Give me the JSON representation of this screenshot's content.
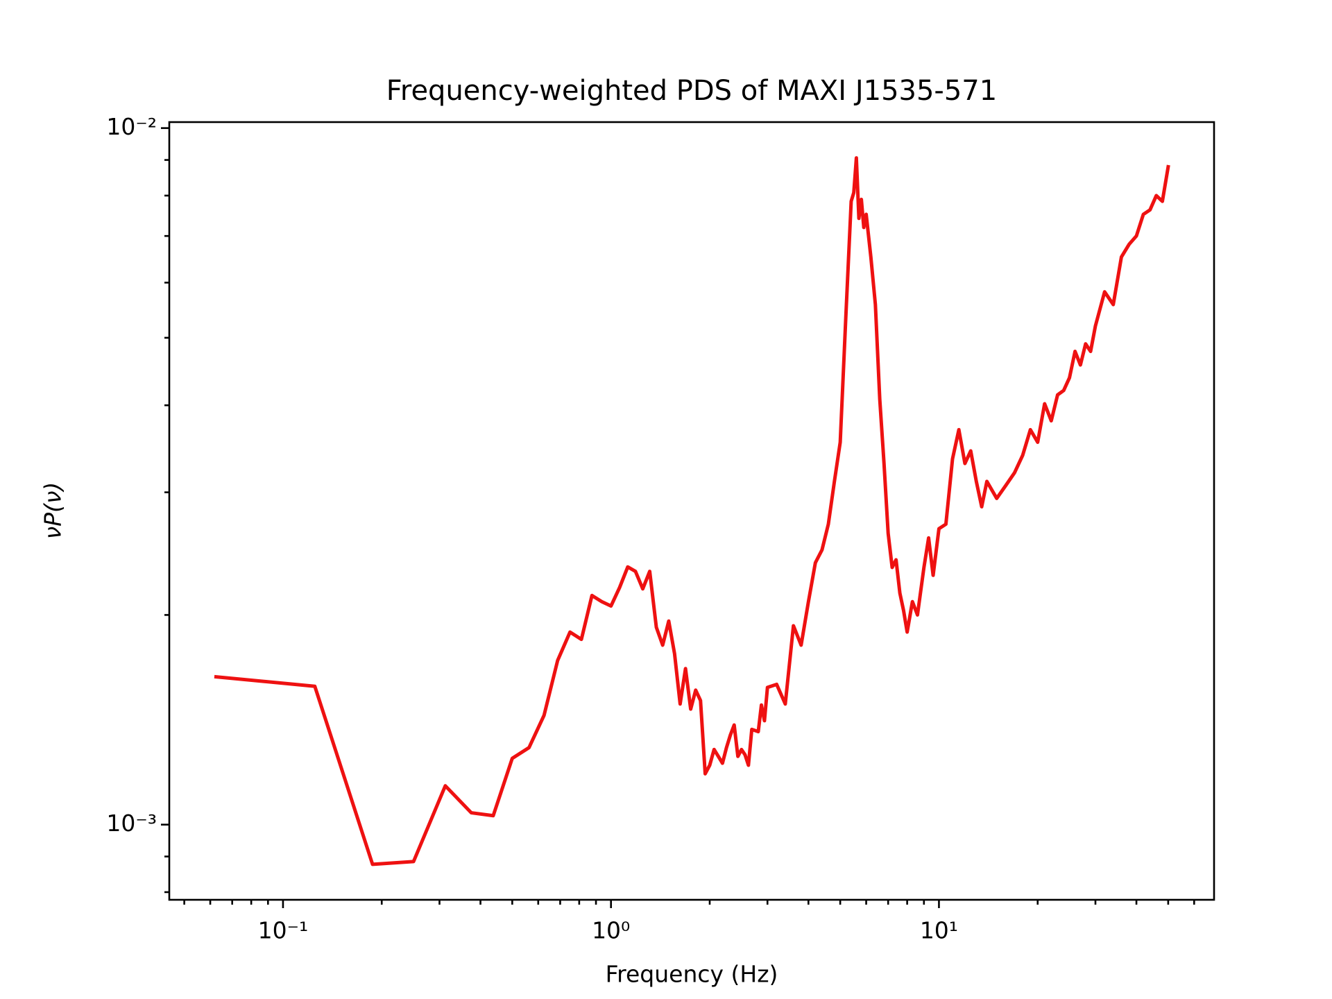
{
  "chart_data": {
    "type": "line",
    "title": "Frequency-weighted PDS of MAXI J1535-571",
    "xlabel": "Frequency (Hz)",
    "ylabel": "νP(ν)",
    "xscale": "log",
    "yscale": "log",
    "xlim": [
      0.045,
      69
    ],
    "ylim": [
      0.00078,
      0.0102
    ],
    "xticks": [
      {
        "value": 0.1,
        "label": "10⁻¹"
      },
      {
        "value": 1,
        "label": "10⁰"
      },
      {
        "value": 10,
        "label": "10¹"
      }
    ],
    "yticks": [
      {
        "value": 0.001,
        "label": "10⁻³"
      },
      {
        "value": 0.01,
        "label": "10⁻²"
      }
    ],
    "xminor": [
      0.05,
      0.06,
      0.07,
      0.08,
      0.09,
      0.2,
      0.3,
      0.4,
      0.5,
      0.6,
      0.7,
      0.8,
      0.9,
      2,
      3,
      4,
      5,
      6,
      7,
      8,
      9,
      20,
      30,
      40,
      50,
      60
    ],
    "yminor": [
      0.0008,
      0.0009,
      0.002,
      0.003,
      0.004,
      0.005,
      0.006,
      0.007,
      0.008,
      0.009
    ],
    "x": [
      0.0625,
      0.125,
      0.1875,
      0.25,
      0.3125,
      0.375,
      0.4375,
      0.5,
      0.5625,
      0.625,
      0.6875,
      0.75,
      0.8125,
      0.875,
      0.9375,
      1.0,
      1.0625,
      1.125,
      1.1875,
      1.25,
      1.3125,
      1.375,
      1.4375,
      1.5,
      1.5625,
      1.625,
      1.6875,
      1.75,
      1.8125,
      1.875,
      1.9375,
      2.0,
      2.0625,
      2.125,
      2.1875,
      2.25,
      2.3125,
      2.375,
      2.4375,
      2.5,
      2.5625,
      2.625,
      2.6875,
      2.75,
      2.8125,
      2.875,
      2.9375,
      3.0,
      3.2,
      3.4,
      3.6,
      3.8,
      4.0,
      4.2,
      4.4,
      4.6,
      4.8,
      5.0,
      5.2,
      5.4,
      5.5,
      5.6,
      5.7,
      5.8,
      5.9,
      6.0,
      6.2,
      6.4,
      6.6,
      6.8,
      7.0,
      7.2,
      7.4,
      7.6,
      7.8,
      8.0,
      8.3,
      8.6,
      9.0,
      9.3,
      9.6,
      10,
      10.5,
      11,
      11.5,
      12,
      12.5,
      13,
      13.5,
      14,
      15,
      16,
      17,
      18,
      19,
      20,
      21,
      22,
      23,
      24,
      25,
      26,
      27,
      28,
      29,
      30,
      32,
      34,
      36,
      38,
      40,
      42,
      44,
      46,
      48,
      50
    ],
    "series": [
      {
        "color": "#ee1111",
        "values": [
          0.00163,
          0.00158,
          0.000877,
          0.000885,
          0.001137,
          0.00104,
          0.00103,
          0.001245,
          0.00129,
          0.001435,
          0.00172,
          0.00189,
          0.001845,
          0.002133,
          0.00209,
          0.00206,
          0.00219,
          0.002344,
          0.00231,
          0.00218,
          0.00231,
          0.00192,
          0.00181,
          0.00196,
          0.00176,
          0.00149,
          0.001675,
          0.001465,
          0.00156,
          0.001507,
          0.001183,
          0.001217,
          0.001282,
          0.001253,
          0.001225,
          0.00129,
          0.001345,
          0.00139,
          0.001253,
          0.001282,
          0.00126,
          0.001217,
          0.00137,
          0.001365,
          0.00136,
          0.001485,
          0.00141,
          0.001574,
          0.00159,
          0.00149,
          0.00193,
          0.00181,
          0.00209,
          0.002377,
          0.00248,
          0.0027,
          0.00311,
          0.00354,
          0.00535,
          0.00785,
          0.00808,
          0.00906,
          0.00742,
          0.0079,
          0.0072,
          0.00752,
          0.00653,
          0.00558,
          0.00408,
          0.0033,
          0.00262,
          0.00234,
          0.0024,
          0.00215,
          0.00203,
          0.00189,
          0.00209,
          0.002,
          0.00234,
          0.00258,
          0.00228,
          0.00266,
          0.0027,
          0.00335,
          0.00369,
          0.0033,
          0.00344,
          0.00311,
          0.00286,
          0.00311,
          0.00294,
          0.00307,
          0.0032,
          0.00339,
          0.00369,
          0.00354,
          0.00402,
          0.0038,
          0.00414,
          0.0042,
          0.00438,
          0.00478,
          0.00457,
          0.0049,
          0.00478,
          0.0052,
          0.00582,
          0.00558,
          0.00653,
          0.00681,
          0.007,
          0.00752,
          0.00763,
          0.008,
          0.00785,
          0.0088
        ]
      }
    ]
  }
}
